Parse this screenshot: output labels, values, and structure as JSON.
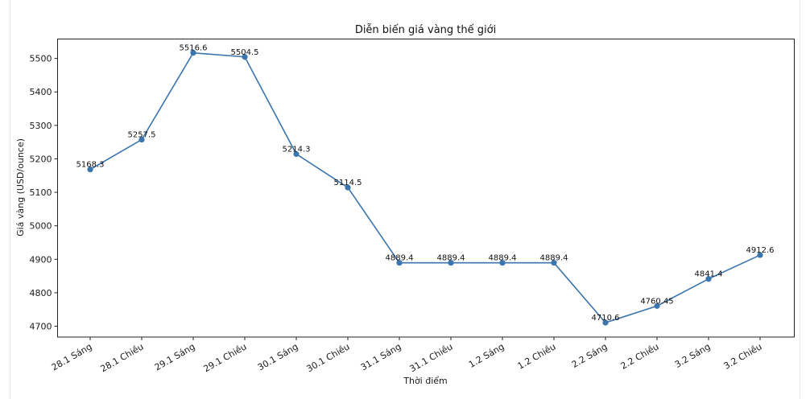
{
  "chart_data": {
    "type": "line",
    "title": "Diễn biến giá vàng thế giới",
    "xlabel": "Thời điểm",
    "ylabel": "Giá vàng (USD/ounce)",
    "categories": [
      "28.1 Sáng",
      "28.1 Chiều",
      "29.1 Sáng",
      "29.1 Chiều",
      "30.1 Sáng",
      "30.1 Chiều",
      "31.1 Sáng",
      "31.1 Chiều",
      "1.2 Sáng",
      "1.2 Chiều",
      "2.2 Sáng",
      "2.2 Chiều",
      "3.2 Sáng",
      "3.2 Chiều"
    ],
    "series": [
      {
        "name": "Giá vàng",
        "values": [
          5168.3,
          5257.5,
          5516.6,
          5504.5,
          5214.3,
          5114.5,
          4889.4,
          4889.4,
          4889.4,
          4889.4,
          4710.6,
          4760.45,
          4841.4,
          4912.6
        ],
        "labels": [
          "5168.3",
          "5257.5",
          "5516.6",
          "5504.5",
          "5214.3",
          "5114.5",
          "4889.4",
          "4889.4",
          "4889.4",
          "4889.4",
          "4710.6",
          "4760.45",
          "4841.4",
          "4912.6"
        ],
        "color": "#3a75ad",
        "marker": "circle"
      }
    ],
    "yticks": [
      4700,
      4800,
      4900,
      5000,
      5100,
      5200,
      5300,
      5400,
      5500
    ],
    "ylim": [
      4667.6,
      5558
    ],
    "grid": false,
    "legend": "none"
  }
}
